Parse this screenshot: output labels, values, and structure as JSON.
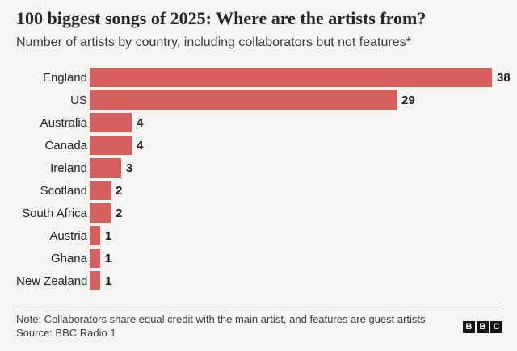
{
  "header": {
    "title": "100 biggest songs of 2025: Where are the artists from?",
    "subtitle": "Number of artists by country, including collaborators but not features*"
  },
  "chart_data": {
    "type": "bar",
    "orientation": "horizontal",
    "categories": [
      "England",
      "US",
      "Australia",
      "Canada",
      "Ireland",
      "Scotland",
      "South Africa",
      "Austria",
      "Ghana",
      "New Zealand"
    ],
    "values": [
      38,
      29,
      4,
      4,
      3,
      2,
      2,
      1,
      1,
      1
    ],
    "xlim": [
      0,
      38
    ],
    "title": "100 biggest songs of 2025: Where are the artists from?",
    "subtitle": "Number of artists by country, including collaborators but not features*",
    "value_labels": true,
    "grid": false,
    "legend": false,
    "bar_color": "#d5605e"
  },
  "footer": {
    "note": "Note: Collaborators share equal credit with the main artist, and features are guest artists",
    "source": "Source: BBC Radio 1",
    "logo_letters": [
      "B",
      "B",
      "C"
    ]
  },
  "colors": {
    "background": "#f5f4f2",
    "bar": "#d5605e",
    "title_text": "#262624",
    "body_text": "#3d3d3b",
    "divider": "#737371",
    "logo_bg": "#141414",
    "logo_text": "#ffffff"
  }
}
